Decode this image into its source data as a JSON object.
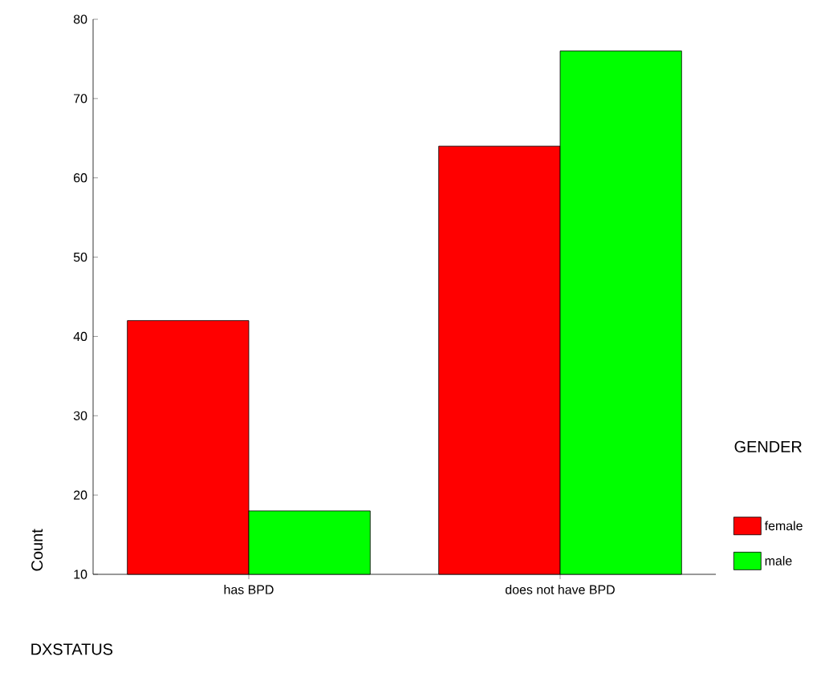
{
  "chart_data": {
    "type": "bar",
    "categories": [
      "has BPD",
      "does not have BPD"
    ],
    "series": [
      {
        "name": "female",
        "color": "#ff0000",
        "values": [
          42,
          64
        ]
      },
      {
        "name": "male",
        "color": "#00ff00",
        "values": [
          18,
          76
        ]
      }
    ],
    "ylim": [
      10,
      80
    ],
    "yticks": [
      10,
      20,
      30,
      40,
      50,
      60,
      70,
      80
    ],
    "xlabel": "DXSTATUS",
    "ylabel": "Count",
    "legend_title": "GENDER",
    "legend": "right",
    "grid": false
  }
}
